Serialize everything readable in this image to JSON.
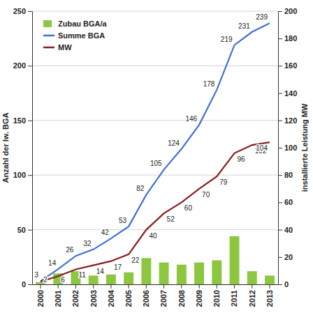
{
  "chart_data": {
    "type": "bar",
    "categories": [
      "2000",
      "2001",
      "2002",
      "2003",
      "2004",
      "2005",
      "2006",
      "2007",
      "2008",
      "2009",
      "2010",
      "2011",
      "2012",
      "2013"
    ],
    "series": [
      {
        "name": "Zubau BGA/a",
        "type": "bar",
        "color": "#8dc63f",
        "values": [
          2,
          10,
          12,
          8,
          9,
          11,
          24,
          20,
          18,
          20,
          22,
          44,
          12,
          8
        ]
      },
      {
        "name": "Summe BGA",
        "type": "line",
        "color": "#3f6fd8",
        "data_labels": true,
        "values": [
          3,
          14,
          26,
          32,
          42,
          53,
          82,
          105,
          124,
          146,
          178,
          219,
          231,
          239
        ]
      },
      {
        "name": "MW",
        "type": "line",
        "color": "#8b1a1a",
        "axis": "y2",
        "data_labels": true,
        "values": [
          2,
          6,
          11,
          14,
          17,
          22,
          40,
          52,
          60,
          70,
          79,
          96,
          102,
          104
        ]
      }
    ],
    "ylabel": "Anzahl der lw. BGA",
    "y2label": "installierte Leistung MW",
    "ylim": [
      0,
      250
    ],
    "yticks": [
      0,
      50,
      100,
      150,
      200,
      250
    ],
    "y2lim": [
      0,
      200
    ],
    "y2ticks": [
      0,
      20,
      40,
      60,
      80,
      100,
      120,
      140,
      160,
      180,
      200
    ],
    "grid": true,
    "legend": "upper left"
  }
}
